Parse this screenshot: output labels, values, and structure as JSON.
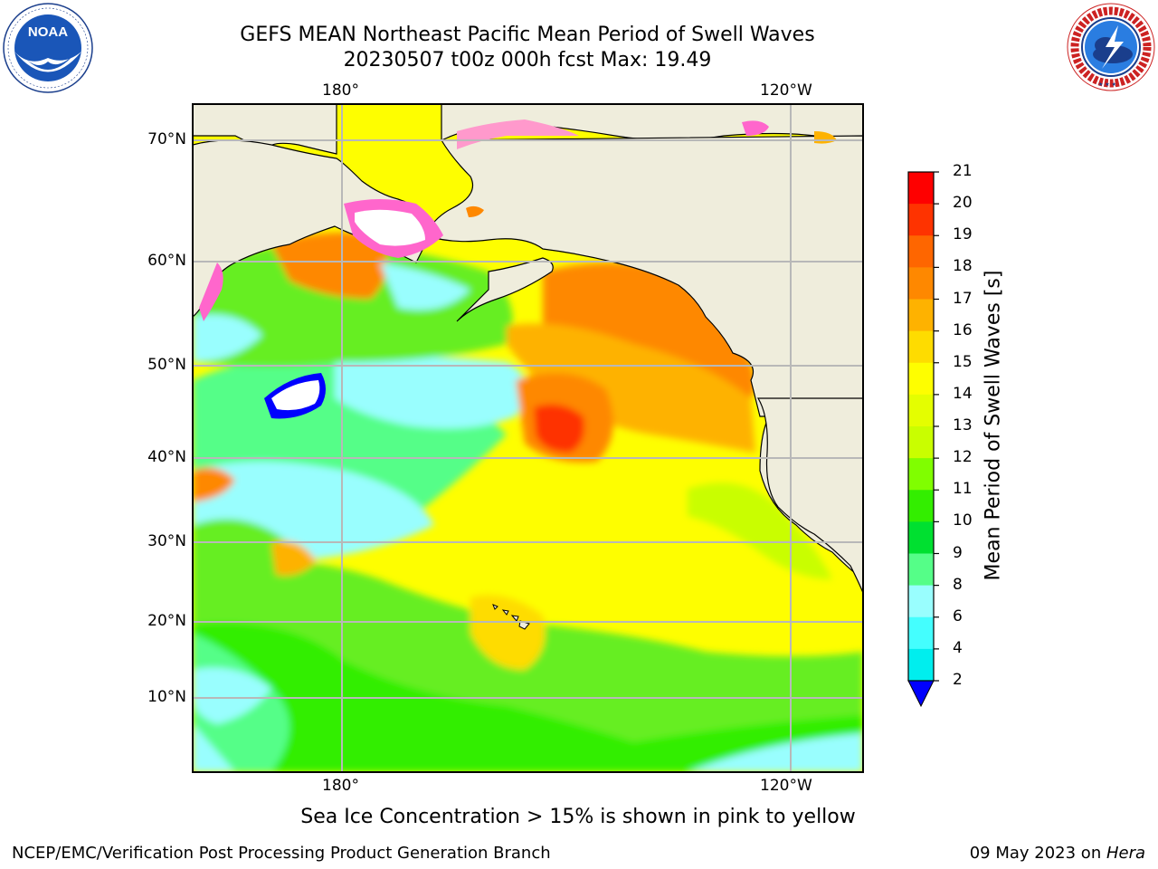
{
  "title": {
    "line1": "GEFS MEAN Northeast Pacific Mean Period of Swell Waves",
    "line2": "20230507 t00z 000h fcst   Max: 19.49"
  },
  "logos": {
    "left": {
      "name": "noaa-logo",
      "text": "NOAA",
      "ring_text": "NATIONAL OCEANIC AND ATMOSPHERIC ADMINISTRATION · U.S. DEPARTMENT OF COMMERCE"
    },
    "right": {
      "name": "nws-logo",
      "ring_text": "NATIONAL WEATHER SERVICE"
    }
  },
  "map": {
    "top_lon_labels": [
      "180°",
      "120°W"
    ],
    "bottom_lon_labels": [
      "180°",
      "120°W"
    ],
    "lat_labels": [
      "70°N",
      "60°N",
      "50°N",
      "40°N",
      "30°N",
      "20°N",
      "10°N"
    ]
  },
  "colorbar": {
    "label": "Mean Period of Swell Waves [s]",
    "ticks": [
      "21",
      "20",
      "19",
      "18",
      "17",
      "16",
      "15",
      "14",
      "13",
      "12",
      "11",
      "10",
      "9",
      "8",
      "6",
      "4",
      "2"
    ],
    "colors": [
      "#fe0000",
      "#fe3300",
      "#fe6600",
      "#fe8800",
      "#feb200",
      "#fedc00",
      "#fefe00",
      "#e4fe00",
      "#c9fe00",
      "#80fe00",
      "#33ee00",
      "#00e030",
      "#55fe88",
      "#99fefe",
      "#44fefe",
      "#00eeee",
      "#00bbfe",
      "#0066fe"
    ],
    "under_color": "#0000fe",
    "land_color": "#efeddc",
    "grid_color": "#b8b8b8"
  },
  "ice_note": "Sea Ice Concentration > 15% is shown in pink to yellow",
  "footer": {
    "left": "NCEP/EMC/Verification Post Processing Product Generation Branch",
    "right_date": "09 May 2023 on ",
    "right_host": "Hera"
  }
}
